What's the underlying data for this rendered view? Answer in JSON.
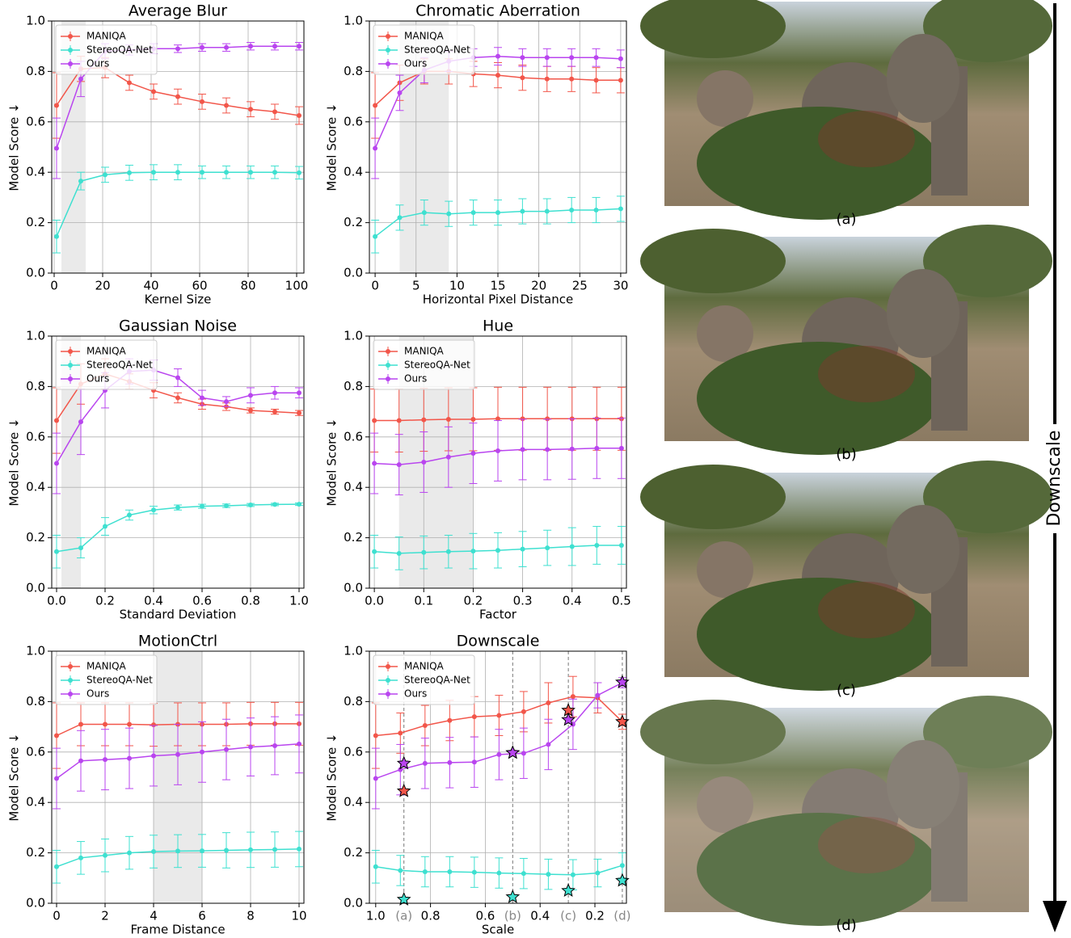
{
  "chart_data": [
    {
      "type": "line",
      "title": "Average Blur",
      "xlabel": "Kernel Size",
      "ylabel": "Model Score ↓",
      "x": [
        1,
        11,
        21,
        31,
        41,
        51,
        61,
        71,
        81,
        91,
        101
      ],
      "xlim": [
        -1,
        103
      ],
      "xticks": [
        0,
        20,
        40,
        60,
        80,
        100
      ],
      "ylim": [
        0,
        1
      ],
      "yticks": [
        {
          "value": 0,
          "label": "0.0"
        },
        0.2,
        0.4,
        0.6,
        0.8,
        {
          "value": 1,
          "label": "1.0"
        }
      ],
      "grid": true,
      "legend": "upper left",
      "highlight": [
        3,
        13
      ],
      "series": [
        {
          "name": "MANIQA",
          "color": "#f2564a",
          "values": [
            0.665,
            0.81,
            0.815,
            0.755,
            0.72,
            0.7,
            0.68,
            0.665,
            0.65,
            0.64,
            0.625
          ],
          "errors": [
            0.13,
            0.05,
            0.04,
            0.03,
            0.03,
            0.03,
            0.03,
            0.03,
            0.03,
            0.03,
            0.035
          ]
        },
        {
          "name": "StereoQA-Net",
          "color": "#3ee0d0",
          "values": [
            0.145,
            0.365,
            0.39,
            0.398,
            0.4,
            0.4,
            0.4,
            0.4,
            0.4,
            0.4,
            0.398
          ],
          "errors": [
            0.065,
            0.035,
            0.03,
            0.03,
            0.03,
            0.03,
            0.025,
            0.025,
            0.025,
            0.025,
            0.025
          ]
        },
        {
          "name": "Ours",
          "color": "#b945ef",
          "values": [
            0.495,
            0.77,
            0.88,
            0.885,
            0.89,
            0.89,
            0.895,
            0.895,
            0.9,
            0.9,
            0.9
          ],
          "errors": [
            0.12,
            0.07,
            0.03,
            0.02,
            0.02,
            0.015,
            0.015,
            0.015,
            0.015,
            0.015,
            0.015
          ]
        }
      ]
    },
    {
      "type": "line",
      "title": "Chromatic Aberration",
      "xlabel": "Horizontal Pixel Distance",
      "ylabel": "Model Score ↓",
      "x": [
        0,
        3,
        6,
        9,
        12,
        15,
        18,
        21,
        24,
        27,
        30
      ],
      "xlim": [
        -0.7,
        30.7
      ],
      "xticks": [
        0,
        5,
        10,
        15,
        20,
        25,
        30
      ],
      "ylim": [
        0,
        1
      ],
      "yticks": [
        {
          "value": 0,
          "label": "0.0"
        },
        0.2,
        0.4,
        0.6,
        0.8,
        {
          "value": 1,
          "label": "1.0"
        }
      ],
      "grid": true,
      "legend": "upper left",
      "highlight": [
        3,
        9
      ],
      "series": [
        {
          "name": "MANIQA",
          "color": "#f2564a",
          "values": [
            0.665,
            0.755,
            0.8,
            0.8,
            0.79,
            0.785,
            0.775,
            0.77,
            0.77,
            0.765,
            0.765
          ],
          "errors": [
            0.13,
            0.07,
            0.05,
            0.05,
            0.05,
            0.05,
            0.05,
            0.05,
            0.05,
            0.05,
            0.05
          ]
        },
        {
          "name": "StereoQA-Net",
          "color": "#3ee0d0",
          "values": [
            0.145,
            0.22,
            0.24,
            0.235,
            0.24,
            0.24,
            0.245,
            0.245,
            0.25,
            0.25,
            0.255
          ],
          "errors": [
            0.065,
            0.05,
            0.05,
            0.05,
            0.05,
            0.05,
            0.05,
            0.05,
            0.05,
            0.05,
            0.05
          ]
        },
        {
          "name": "Ours",
          "color": "#b945ef",
          "values": [
            0.495,
            0.715,
            0.805,
            0.84,
            0.855,
            0.86,
            0.855,
            0.855,
            0.855,
            0.855,
            0.85
          ],
          "errors": [
            0.12,
            0.07,
            0.05,
            0.04,
            0.035,
            0.035,
            0.035,
            0.035,
            0.035,
            0.035,
            0.035
          ]
        }
      ]
    },
    {
      "type": "line",
      "title": "Gaussian Noise",
      "xlabel": "Standard Deviation",
      "ylabel": "Model Score ↓",
      "x": [
        0,
        0.1,
        0.2,
        0.3,
        0.4,
        0.5,
        0.6,
        0.7,
        0.8,
        0.9,
        1
      ],
      "xlim": [
        -0.02,
        1.02
      ],
      "xticks": [
        {
          "value": 0,
          "label": "0.0"
        },
        0.2,
        0.4,
        0.6,
        0.8,
        {
          "value": 1,
          "label": "1.0"
        }
      ],
      "ylim": [
        0,
        1
      ],
      "yticks": [
        {
          "value": 0,
          "label": "0.0"
        },
        0.2,
        0.4,
        0.6,
        0.8,
        {
          "value": 1,
          "label": "1.0"
        }
      ],
      "grid": true,
      "legend": "upper left",
      "highlight": [
        0.02,
        0.1
      ],
      "series": [
        {
          "name": "MANIQA",
          "color": "#f2564a",
          "values": [
            0.665,
            0.81,
            0.85,
            0.82,
            0.785,
            0.755,
            0.73,
            0.72,
            0.705,
            0.7,
            0.695
          ],
          "errors": [
            0.13,
            0.08,
            0.06,
            0.03,
            0.03,
            0.02,
            0.02,
            0.015,
            0.01,
            0.01,
            0.01
          ]
        },
        {
          "name": "StereoQA-Net",
          "color": "#3ee0d0",
          "values": [
            0.145,
            0.16,
            0.245,
            0.29,
            0.31,
            0.32,
            0.325,
            0.327,
            0.33,
            0.332,
            0.333
          ],
          "errors": [
            0.065,
            0.04,
            0.035,
            0.02,
            0.015,
            0.01,
            0.008,
            0.007,
            0.006,
            0.005,
            0.005
          ]
        },
        {
          "name": "Ours",
          "color": "#b945ef",
          "values": [
            0.495,
            0.66,
            0.785,
            0.86,
            0.865,
            0.835,
            0.755,
            0.74,
            0.765,
            0.775,
            0.775
          ],
          "errors": [
            0.12,
            0.13,
            0.07,
            0.05,
            0.04,
            0.035,
            0.03,
            0.02,
            0.03,
            0.025,
            0.02
          ]
        }
      ]
    },
    {
      "type": "line",
      "title": "Hue",
      "xlabel": "Factor",
      "ylabel": "Model Score ↓",
      "x": [
        0,
        0.05,
        0.1,
        0.15,
        0.2,
        0.25,
        0.3,
        0.35,
        0.4,
        0.45,
        0.5
      ],
      "xlim": [
        -0.01,
        0.51
      ],
      "xticks": [
        {
          "value": 0,
          "label": "0.0"
        },
        0.1,
        0.2,
        0.3,
        0.4,
        0.5
      ],
      "ylim": [
        0,
        1
      ],
      "yticks": [
        {
          "value": 0,
          "label": "0.0"
        },
        0.2,
        0.4,
        0.6,
        0.8,
        {
          "value": 1,
          "label": "1.0"
        }
      ],
      "grid": true,
      "legend": "upper left",
      "highlight": [
        0.05,
        0.2
      ],
      "series": [
        {
          "name": "MANIQA",
          "color": "#f2564a",
          "values": [
            0.665,
            0.665,
            0.668,
            0.67,
            0.67,
            0.672,
            0.672,
            0.672,
            0.672,
            0.672,
            0.672
          ],
          "errors": [
            0.125,
            0.125,
            0.125,
            0.125,
            0.125,
            0.125,
            0.125,
            0.125,
            0.125,
            0.125,
            0.125
          ]
        },
        {
          "name": "StereoQA-Net",
          "color": "#3ee0d0",
          "values": [
            0.145,
            0.138,
            0.142,
            0.145,
            0.147,
            0.15,
            0.155,
            0.16,
            0.165,
            0.17,
            0.17
          ],
          "errors": [
            0.065,
            0.065,
            0.065,
            0.065,
            0.07,
            0.07,
            0.07,
            0.07,
            0.075,
            0.075,
            0.075
          ]
        },
        {
          "name": "Ours",
          "color": "#b945ef",
          "values": [
            0.495,
            0.49,
            0.5,
            0.52,
            0.535,
            0.545,
            0.55,
            0.55,
            0.552,
            0.555,
            0.555
          ],
          "errors": [
            0.12,
            0.12,
            0.12,
            0.12,
            0.12,
            0.12,
            0.12,
            0.12,
            0.12,
            0.12,
            0.12
          ]
        }
      ]
    },
    {
      "type": "line",
      "title": "MotionCtrl",
      "xlabel": "Frame Distance",
      "ylabel": "Model Score ↓",
      "x": [
        0,
        1,
        2,
        3,
        4,
        5,
        6,
        7,
        8,
        9,
        10
      ],
      "xlim": [
        -0.2,
        10.2
      ],
      "xticks": [
        0,
        2,
        4,
        6,
        8,
        10
      ],
      "ylim": [
        0,
        1
      ],
      "yticks": [
        {
          "value": 0,
          "label": "0.0"
        },
        0.2,
        0.4,
        0.6,
        0.8,
        {
          "value": 1,
          "label": "1.0"
        }
      ],
      "grid": true,
      "legend": "upper left",
      "highlight": [
        4,
        6
      ],
      "series": [
        {
          "name": "MANIQA",
          "color": "#f2564a",
          "values": [
            0.665,
            0.71,
            0.71,
            0.71,
            0.708,
            0.71,
            0.71,
            0.71,
            0.712,
            0.712,
            0.712
          ],
          "errors": [
            0.13,
            0.085,
            0.085,
            0.085,
            0.085,
            0.085,
            0.085,
            0.085,
            0.085,
            0.085,
            0.085
          ]
        },
        {
          "name": "StereoQA-Net",
          "color": "#3ee0d0",
          "values": [
            0.145,
            0.18,
            0.19,
            0.2,
            0.205,
            0.207,
            0.208,
            0.21,
            0.212,
            0.213,
            0.215
          ],
          "errors": [
            0.065,
            0.065,
            0.065,
            0.065,
            0.065,
            0.065,
            0.065,
            0.07,
            0.07,
            0.07,
            0.07
          ]
        },
        {
          "name": "Ours",
          "color": "#b945ef",
          "values": [
            0.495,
            0.565,
            0.57,
            0.575,
            0.585,
            0.59,
            0.6,
            0.61,
            0.62,
            0.625,
            0.632
          ],
          "errors": [
            0.12,
            0.12,
            0.12,
            0.12,
            0.12,
            0.12,
            0.12,
            0.12,
            0.115,
            0.115,
            0.115
          ]
        }
      ]
    },
    {
      "type": "line",
      "title": "Downscale",
      "xlabel": "Scale",
      "ylabel": "Model Score ↓",
      "x": [
        1,
        0.91,
        0.82,
        0.73,
        0.64,
        0.55,
        0.46,
        0.37,
        0.28,
        0.19,
        0.1
      ],
      "xlim": [
        1.023,
        0.085
      ],
      "xticks": [
        {
          "value": 1,
          "label": "1.0"
        },
        0.8,
        0.6,
        0.4,
        0.2
      ],
      "ylim": [
        0,
        1
      ],
      "yticks": [
        {
          "value": 0,
          "label": "0.0"
        },
        0.2,
        0.4,
        0.6,
        0.8,
        {
          "value": 1,
          "label": "1.0"
        }
      ],
      "grid": true,
      "legend": "upper left",
      "star_x": [
        0.897,
        0.5,
        0.297,
        0.1
      ],
      "star_labels": [
        "(a)",
        "(b)",
        "(c)",
        "(d)"
      ],
      "series": [
        {
          "name": "MANIQA",
          "color": "#f2564a",
          "values": [
            0.665,
            0.675,
            0.705,
            0.725,
            0.74,
            0.745,
            0.76,
            0.795,
            0.82,
            0.815,
            0.72
          ],
          "errors": [
            0.13,
            0.08,
            0.08,
            0.08,
            0.08,
            0.08,
            0.08,
            0.08,
            0.08,
            0.06,
            0.03
          ],
          "star_values": [
            0.445,
            0.597,
            0.765,
            0.72
          ]
        },
        {
          "name": "StereoQA-Net",
          "color": "#3ee0d0",
          "values": [
            0.145,
            0.13,
            0.125,
            0.125,
            0.123,
            0.12,
            0.118,
            0.115,
            0.113,
            0.12,
            0.15
          ],
          "errors": [
            0.065,
            0.06,
            0.06,
            0.06,
            0.06,
            0.06,
            0.06,
            0.06,
            0.06,
            0.055,
            0.05
          ],
          "star_values": [
            0.015,
            0.025,
            0.05,
            0.09
          ]
        },
        {
          "name": "Ours",
          "color": "#b945ef",
          "values": [
            0.495,
            0.53,
            0.555,
            0.558,
            0.56,
            0.59,
            0.595,
            0.63,
            0.71,
            0.825,
            0.875
          ],
          "errors": [
            0.12,
            0.1,
            0.1,
            0.1,
            0.1,
            0.1,
            0.1,
            0.1,
            0.1,
            0.05,
            0.02
          ],
          "star_values": [
            0.555,
            0.597,
            0.728,
            0.877
          ]
        }
      ]
    }
  ],
  "figure": {
    "captions": [
      "(a)",
      "(b)",
      "(c)",
      "(d)"
    ],
    "arrow_label": "Downscale"
  }
}
